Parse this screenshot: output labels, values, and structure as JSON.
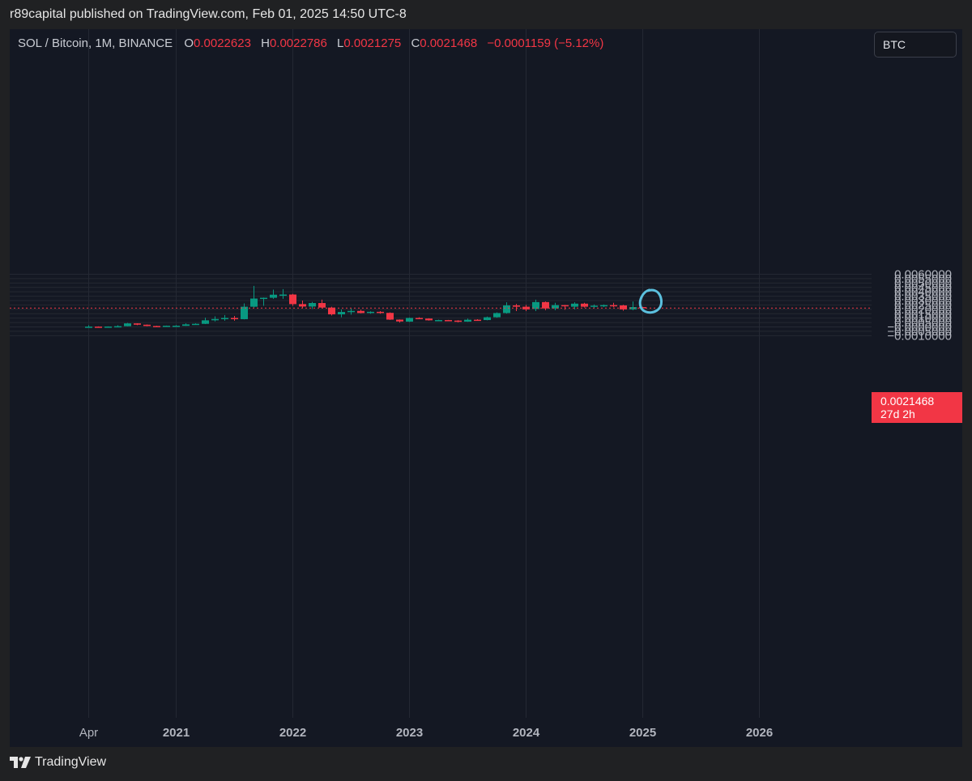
{
  "header": {
    "published_text": "r89capital published on TradingView.com, Feb 01, 2025 14:50 UTC-8"
  },
  "legend": {
    "symbol": "SOL / Bitcoin, 1M, BINANCE",
    "o_label": "O",
    "o_value": "0.0022623",
    "h_label": "H",
    "h_value": "0.0022786",
    "l_label": "L",
    "l_value": "0.0021275",
    "c_label": "C",
    "c_value": "0.0021468",
    "change": "−0.0001159 (−5.12%)"
  },
  "currency_button": "BTC",
  "price_label": {
    "price": "0.0021468",
    "countdown": "27d 2h"
  },
  "footer": {
    "brand": "TradingView"
  },
  "colors": {
    "up": "#089981",
    "down": "#f23645",
    "grid": "#242833",
    "axis_text": "#b2b5be",
    "annotation": "#5bc0de",
    "price_line": "#f23645"
  },
  "chart_data": {
    "type": "candlestick",
    "title": "SOL / Bitcoin, 1M, BINANCE",
    "ylim": [
      -0.0013,
      0.006
    ],
    "y_ticks": [
      "0.0060000",
      "0.0055000",
      "0.0050000",
      "0.0045000",
      "0.0040000",
      "0.0035000",
      "0.0030000",
      "0.0025000",
      "0.0020000",
      "0.0015000",
      "0.0010000",
      "0.0005000",
      "−0.0000000",
      "−0.0005000",
      "−0.0010000"
    ],
    "y_tick_values": [
      0.006,
      0.0055,
      0.005,
      0.0045,
      0.004,
      0.0035,
      0.003,
      0.0025,
      0.002,
      0.0015,
      0.001,
      0.0005,
      0,
      -0.0005,
      -0.001
    ],
    "x_ticks": [
      {
        "label": "Apr",
        "month": "2020-04"
      },
      {
        "label": "2021",
        "month": "2021-01"
      },
      {
        "label": "2022",
        "month": "2022-01"
      },
      {
        "label": "2023",
        "month": "2023-01"
      },
      {
        "label": "2024",
        "month": "2024-01"
      },
      {
        "label": "2025",
        "month": "2025-01"
      },
      {
        "label": "2026",
        "month": "2026-01"
      }
    ],
    "last_price": 0.0021468,
    "annotation": {
      "type": "circle",
      "month": "2025-01",
      "y": 0.00273
    },
    "candles": [
      {
        "month": "2020-04",
        "open": -3e-05,
        "high": 0.00018,
        "low": -5e-05,
        "close": 3e-05
      },
      {
        "month": "2020-05",
        "open": 3e-05,
        "high": 6e-05,
        "low": 0.0,
        "close": 1e-05
      },
      {
        "month": "2020-06",
        "open": 1e-05,
        "high": 6e-05,
        "low": -1e-05,
        "close": 4e-05
      },
      {
        "month": "2020-07",
        "open": 4e-05,
        "high": 0.00019,
        "low": 2e-05,
        "close": 8e-05
      },
      {
        "month": "2020-08",
        "open": 8e-05,
        "high": 0.00045,
        "low": 7e-05,
        "close": 0.0004
      },
      {
        "month": "2020-09",
        "open": 0.0004,
        "high": 0.00042,
        "low": 0.0002,
        "close": 0.00025
      },
      {
        "month": "2020-10",
        "open": 0.00025,
        "high": 0.00028,
        "low": 7e-05,
        "close": 0.0001
      },
      {
        "month": "2020-11",
        "open": 0.0001,
        "high": 0.00013,
        "low": 5e-05,
        "close": 6e-05
      },
      {
        "month": "2020-12",
        "open": 6e-05,
        "high": 0.00015,
        "low": 3e-05,
        "close": 0.00013
      },
      {
        "month": "2021-01",
        "open": 5e-05,
        "high": 0.0002,
        "low": 3e-05,
        "close": 0.00013
      },
      {
        "month": "2021-02",
        "open": 0.00012,
        "high": 0.0004,
        "low": 0.00011,
        "close": 0.00029
      },
      {
        "month": "2021-03",
        "open": 0.0003,
        "high": 0.0004,
        "low": 0.00027,
        "close": 0.00035
      },
      {
        "month": "2021-04",
        "open": 0.00035,
        "high": 0.00105,
        "low": 0.00032,
        "close": 0.00075
      },
      {
        "month": "2021-05",
        "open": 0.00075,
        "high": 0.0012,
        "low": 0.00062,
        "close": 0.0009
      },
      {
        "month": "2021-06",
        "open": 0.0009,
        "high": 0.00135,
        "low": 0.0007,
        "close": 0.00102
      },
      {
        "month": "2021-07",
        "open": 0.00102,
        "high": 0.00125,
        "low": 0.0007,
        "close": 0.00088
      },
      {
        "month": "2021-08",
        "open": 0.00088,
        "high": 0.00268,
        "low": 0.00085,
        "close": 0.0023
      },
      {
        "month": "2021-09",
        "open": 0.0023,
        "high": 0.00468,
        "low": 0.0022,
        "close": 0.00323
      },
      {
        "month": "2021-10",
        "open": 0.00323,
        "high": 0.00335,
        "low": 0.0024,
        "close": 0.00332
      },
      {
        "month": "2021-11",
        "open": 0.00332,
        "high": 0.00425,
        "low": 0.0032,
        "close": 0.00367
      },
      {
        "month": "2021-12",
        "open": 0.00367,
        "high": 0.0043,
        "low": 0.0032,
        "close": 0.00369
      },
      {
        "month": "2022-01",
        "open": 0.00369,
        "high": 0.00376,
        "low": 0.0024,
        "close": 0.0026
      },
      {
        "month": "2022-02",
        "open": 0.0026,
        "high": 0.003,
        "low": 0.00215,
        "close": 0.00232
      },
      {
        "month": "2022-03",
        "open": 0.00232,
        "high": 0.00285,
        "low": 0.00205,
        "close": 0.00272
      },
      {
        "month": "2022-04",
        "open": 0.00272,
        "high": 0.0031,
        "low": 0.0021,
        "close": 0.0022
      },
      {
        "month": "2022-05",
        "open": 0.0022,
        "high": 0.0023,
        "low": 0.0013,
        "close": 0.00143
      },
      {
        "month": "2022-06",
        "open": 0.00143,
        "high": 0.00198,
        "low": 0.0011,
        "close": 0.0017
      },
      {
        "month": "2022-07",
        "open": 0.0017,
        "high": 0.0021,
        "low": 0.0014,
        "close": 0.00182
      },
      {
        "month": "2022-08",
        "open": 0.00182,
        "high": 0.00195,
        "low": 0.00155,
        "close": 0.00158
      },
      {
        "month": "2022-09",
        "open": 0.00158,
        "high": 0.00178,
        "low": 0.0015,
        "close": 0.00172
      },
      {
        "month": "2022-10",
        "open": 0.00172,
        "high": 0.0018,
        "low": 0.0015,
        "close": 0.0016
      },
      {
        "month": "2022-11",
        "open": 0.0016,
        "high": 0.00165,
        "low": 0.0008,
        "close": 0.00083
      },
      {
        "month": "2022-12",
        "open": 0.00083,
        "high": 0.00085,
        "low": 0.0005,
        "close": 0.00062
      },
      {
        "month": "2023-01",
        "open": 0.0006,
        "high": 0.00106,
        "low": 0.00055,
        "close": 0.00102
      },
      {
        "month": "2023-02",
        "open": 0.00102,
        "high": 0.0011,
        "low": 0.0009,
        "close": 0.00095
      },
      {
        "month": "2023-03",
        "open": 0.00095,
        "high": 0.00098,
        "low": 0.00072,
        "close": 0.00075
      },
      {
        "month": "2023-04",
        "open": 0.00075,
        "high": 0.00082,
        "low": 0.0007,
        "close": 0.00078
      },
      {
        "month": "2023-05",
        "open": 0.00078,
        "high": 0.0008,
        "low": 0.00066,
        "close": 0.00072
      },
      {
        "month": "2023-06",
        "open": 0.00072,
        "high": 0.00076,
        "low": 0.00052,
        "close": 0.0006
      },
      {
        "month": "2023-07",
        "open": 0.0006,
        "high": 0.00095,
        "low": 0.00058,
        "close": 0.00082
      },
      {
        "month": "2023-08",
        "open": 0.00082,
        "high": 0.00088,
        "low": 0.00075,
        "close": 0.00078
      },
      {
        "month": "2023-09",
        "open": 0.00078,
        "high": 0.00118,
        "low": 0.00075,
        "close": 0.0011
      },
      {
        "month": "2023-10",
        "open": 0.0011,
        "high": 0.00165,
        "low": 0.00105,
        "close": 0.00158
      },
      {
        "month": "2023-11",
        "open": 0.00158,
        "high": 0.0028,
        "low": 0.00152,
        "close": 0.00245
      },
      {
        "month": "2023-12",
        "open": 0.00245,
        "high": 0.00262,
        "low": 0.0018,
        "close": 0.0023
      },
      {
        "month": "2024-01",
        "open": 0.0023,
        "high": 0.0025,
        "low": 0.0018,
        "close": 0.002
      },
      {
        "month": "2024-02",
        "open": 0.00205,
        "high": 0.0031,
        "low": 0.0018,
        "close": 0.00283
      },
      {
        "month": "2024-03",
        "open": 0.00283,
        "high": 0.0029,
        "low": 0.0019,
        "close": 0.0021
      },
      {
        "month": "2024-04",
        "open": 0.0021,
        "high": 0.00275,
        "low": 0.0019,
        "close": 0.00248
      },
      {
        "month": "2024-05",
        "open": 0.00248,
        "high": 0.0025,
        "low": 0.00195,
        "close": 0.00235
      },
      {
        "month": "2024-06",
        "open": 0.0023,
        "high": 0.0028,
        "low": 0.002,
        "close": 0.00265
      },
      {
        "month": "2024-07",
        "open": 0.00265,
        "high": 0.00275,
        "low": 0.0022,
        "close": 0.0023
      },
      {
        "month": "2024-08",
        "open": 0.0023,
        "high": 0.00255,
        "low": 0.0021,
        "close": 0.00242
      },
      {
        "month": "2024-09",
        "open": 0.00242,
        "high": 0.00255,
        "low": 0.00225,
        "close": 0.00248
      },
      {
        "month": "2024-10",
        "open": 0.00248,
        "high": 0.00275,
        "low": 0.00225,
        "close": 0.00242
      },
      {
        "month": "2024-11",
        "open": 0.00245,
        "high": 0.00252,
        "low": 0.00185,
        "close": 0.002
      },
      {
        "month": "2024-12",
        "open": 0.002,
        "high": 0.0029,
        "low": 0.0019,
        "close": 0.00226
      },
      {
        "month": "2025-01",
        "open": 0.00226,
        "high": 0.00228,
        "low": 0.00213,
        "close": 0.00215
      }
    ]
  }
}
